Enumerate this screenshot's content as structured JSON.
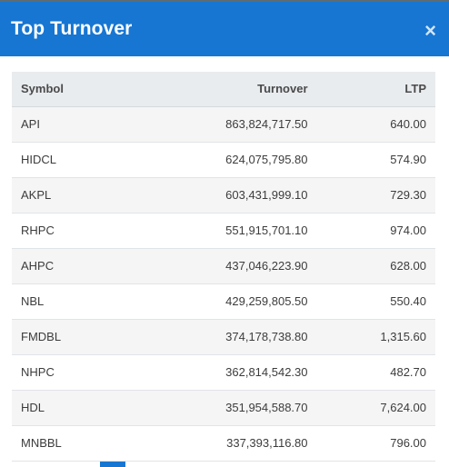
{
  "header": {
    "title": "Top Turnover",
    "close_label": "×"
  },
  "table": {
    "columns": [
      "Symbol",
      "Turnover",
      "LTP"
    ],
    "rows": [
      {
        "symbol": "API",
        "turnover": "863,824,717.50",
        "ltp": "640.00"
      },
      {
        "symbol": "HIDCL",
        "turnover": "624,075,795.80",
        "ltp": "574.90"
      },
      {
        "symbol": "AKPL",
        "turnover": "603,431,999.10",
        "ltp": "729.30"
      },
      {
        "symbol": "RHPC",
        "turnover": "551,915,701.10",
        "ltp": "974.00"
      },
      {
        "symbol": "AHPC",
        "turnover": "437,046,223.90",
        "ltp": "628.00"
      },
      {
        "symbol": "NBL",
        "turnover": "429,259,805.50",
        "ltp": "550.40"
      },
      {
        "symbol": "FMDBL",
        "turnover": "374,178,738.80",
        "ltp": "1,315.60"
      },
      {
        "symbol": "NHPC",
        "turnover": "362,814,542.30",
        "ltp": "482.70"
      },
      {
        "symbol": "HDL",
        "turnover": "351,954,588.70",
        "ltp": "7,624.00"
      },
      {
        "symbol": "MNBBL",
        "turnover": "337,393,116.80",
        "ltp": "796.00"
      }
    ]
  },
  "colors": {
    "header_bg": "#1776d2",
    "table_header_bg": "#e9ecef",
    "row_alt_bg": "#f5f5f5"
  }
}
